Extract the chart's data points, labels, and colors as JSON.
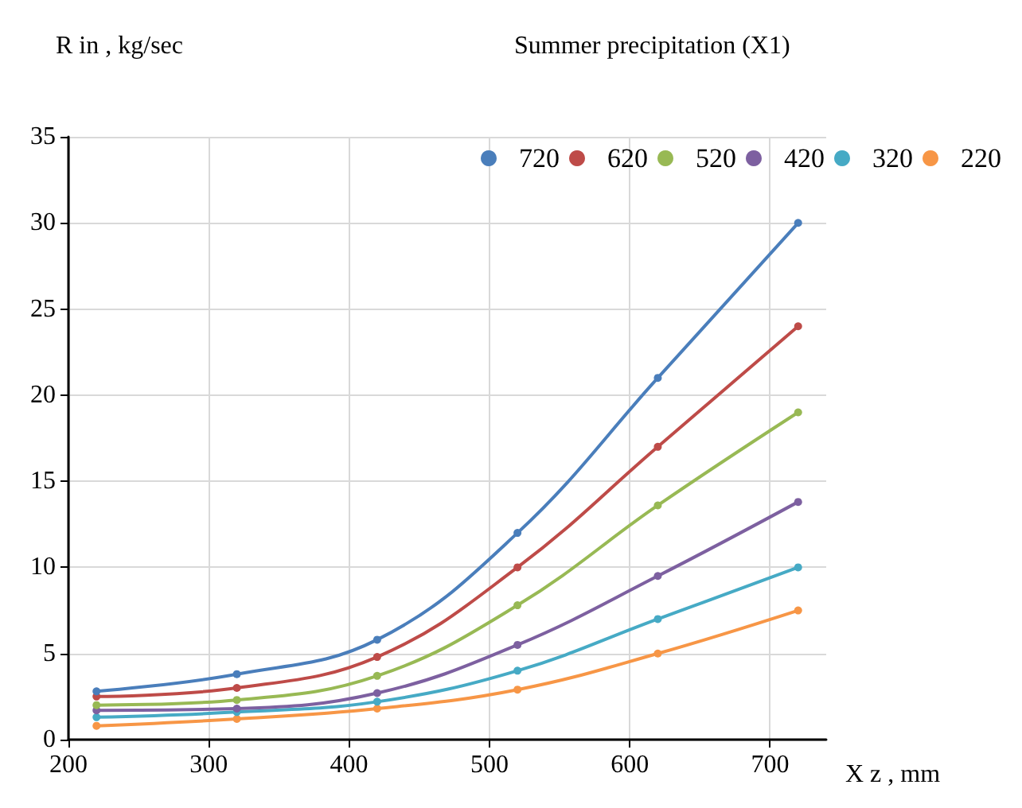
{
  "chart_data": {
    "type": "line",
    "ylabel": "R in , kg/sec",
    "xlabel": "X z , mm",
    "legend_title": "Summer precipitation (X1)",
    "x": [
      220,
      320,
      420,
      520,
      620,
      720
    ],
    "xlim": [
      200,
      740
    ],
    "xticks": [
      200,
      300,
      400,
      500,
      600,
      700
    ],
    "ylim": [
      0,
      35
    ],
    "yticks": [
      0,
      5,
      10,
      15,
      20,
      25,
      30,
      35
    ],
    "grid": true,
    "legend": "top right",
    "marker": "circle",
    "line_style": "solid",
    "series": [
      {
        "name": "720",
        "color": "#4a7ebb",
        "values": [
          2.8,
          3.8,
          5.8,
          12,
          21,
          30
        ]
      },
      {
        "name": "620",
        "color": "#be4b48",
        "values": [
          2.5,
          3.0,
          4.8,
          10,
          17,
          24
        ]
      },
      {
        "name": "520",
        "color": "#98b954",
        "values": [
          2.0,
          2.3,
          3.7,
          7.8,
          13.6,
          19
        ]
      },
      {
        "name": "420",
        "color": "#7d60a0",
        "values": [
          1.7,
          1.8,
          2.7,
          5.5,
          9.5,
          13.8
        ]
      },
      {
        "name": "320",
        "color": "#46aac5",
        "values": [
          1.3,
          1.6,
          2.2,
          4.0,
          7.0,
          10.0
        ]
      },
      {
        "name": "220",
        "color": "#f79646",
        "values": [
          0.8,
          1.2,
          1.8,
          2.9,
          5.0,
          7.5
        ]
      }
    ]
  }
}
